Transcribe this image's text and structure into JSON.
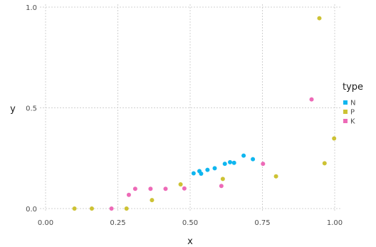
{
  "chart_data": {
    "type": "scatter",
    "xlabel": "x",
    "ylabel": "y",
    "xlim": [
      0,
      1
    ],
    "ylim": [
      0,
      1
    ],
    "x_ticks": [
      0,
      0.25,
      0.5,
      0.75,
      1
    ],
    "x_tick_labels": [
      "0.00",
      "0.25",
      "0.50",
      "0.75",
      "1.00"
    ],
    "y_ticks": [
      0,
      0.5,
      1
    ],
    "y_tick_labels": [
      "0.0",
      "0.5",
      "1.0"
    ],
    "grid": true,
    "legend": {
      "title": "type",
      "placement": "right"
    },
    "series": [
      {
        "name": "N",
        "color": "#0fb6ef",
        "points": [
          [
            0.512,
            0.175
          ],
          [
            0.532,
            0.186
          ],
          [
            0.538,
            0.173
          ],
          [
            0.56,
            0.192
          ],
          [
            0.585,
            0.2
          ],
          [
            0.62,
            0.222
          ],
          [
            0.638,
            0.23
          ],
          [
            0.652,
            0.227
          ],
          [
            0.685,
            0.263
          ],
          [
            0.717,
            0.245
          ]
        ]
      },
      {
        "name": "P",
        "color": "#cdc234",
        "points": [
          [
            0.1,
            0.0
          ],
          [
            0.16,
            0.0
          ],
          [
            0.28,
            0.0
          ],
          [
            0.368,
            0.042
          ],
          [
            0.467,
            0.12
          ],
          [
            0.613,
            0.147
          ],
          [
            0.797,
            0.16
          ],
          [
            0.947,
            0.945
          ],
          [
            0.965,
            0.225
          ],
          [
            0.998,
            0.348
          ]
        ]
      },
      {
        "name": "K",
        "color": "#ed6ab7",
        "points": [
          [
            0.228,
            0.0
          ],
          [
            0.288,
            0.068
          ],
          [
            0.31,
            0.098
          ],
          [
            0.363,
            0.098
          ],
          [
            0.415,
            0.098
          ],
          [
            0.48,
            0.1
          ],
          [
            0.608,
            0.112
          ],
          [
            0.752,
            0.222
          ],
          [
            0.92,
            0.542
          ]
        ]
      }
    ]
  }
}
